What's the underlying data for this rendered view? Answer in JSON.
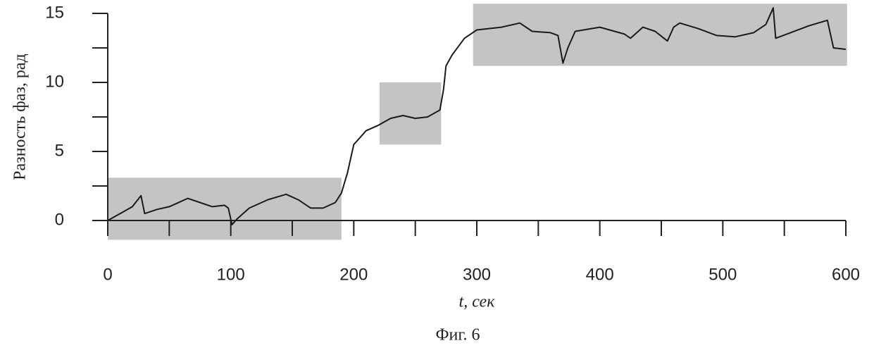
{
  "chart_data": {
    "type": "line",
    "ylabel": "Разность фаз, рад",
    "xlabel": "t, сек",
    "caption": "Фиг. 6",
    "xlim": [
      0,
      600
    ],
    "ylim": [
      0,
      15
    ],
    "xticks": [
      0,
      100,
      200,
      300,
      400,
      500,
      600
    ],
    "xminor": [
      50,
      150,
      250,
      350,
      450,
      550
    ],
    "yticks": [
      0,
      5,
      10,
      15
    ],
    "yminor": [
      2.5,
      7.5,
      12.5
    ],
    "color": "#1a1a1a",
    "region_color": "#c4c4c4",
    "regions": [
      {
        "x": [
          0,
          190
        ],
        "y": [
          -1.4,
          3.1
        ]
      },
      {
        "x": [
          221,
          271
        ],
        "y": [
          5.5,
          10.0
        ]
      },
      {
        "x": [
          297,
          601
        ],
        "y": [
          11.2,
          15.7
        ]
      }
    ],
    "x": [
      0,
      10,
      20,
      27,
      30,
      40,
      50,
      60,
      65,
      75,
      85,
      95,
      98,
      101,
      105,
      115,
      130,
      145,
      155,
      165,
      175,
      185,
      190,
      195,
      200,
      210,
      220,
      230,
      240,
      250,
      260,
      270,
      273,
      275,
      280,
      290,
      300,
      320,
      335,
      345,
      360,
      366,
      370,
      374,
      380,
      400,
      420,
      425,
      435,
      445,
      455,
      460,
      465,
      480,
      495,
      510,
      525,
      535,
      541,
      543,
      555,
      570,
      585,
      590,
      600
    ],
    "values": [
      0,
      0.5,
      1.0,
      1.8,
      0.5,
      0.8,
      1.0,
      1.4,
      1.6,
      1.3,
      1.0,
      1.1,
      0.9,
      -0.3,
      0.1,
      0.9,
      1.5,
      1.9,
      1.5,
      0.9,
      0.9,
      1.3,
      2.0,
      3.5,
      5.5,
      6.5,
      6.9,
      7.4,
      7.6,
      7.4,
      7.5,
      8.0,
      9.5,
      11.2,
      12.0,
      13.2,
      13.8,
      14.0,
      14.3,
      13.7,
      13.6,
      13.4,
      11.4,
      12.5,
      13.7,
      14.0,
      13.5,
      13.2,
      14.0,
      13.7,
      13.0,
      14.0,
      14.3,
      13.9,
      13.4,
      13.3,
      13.6,
      14.2,
      15.4,
      13.2,
      13.6,
      14.1,
      14.5,
      12.5,
      12.4
    ]
  }
}
